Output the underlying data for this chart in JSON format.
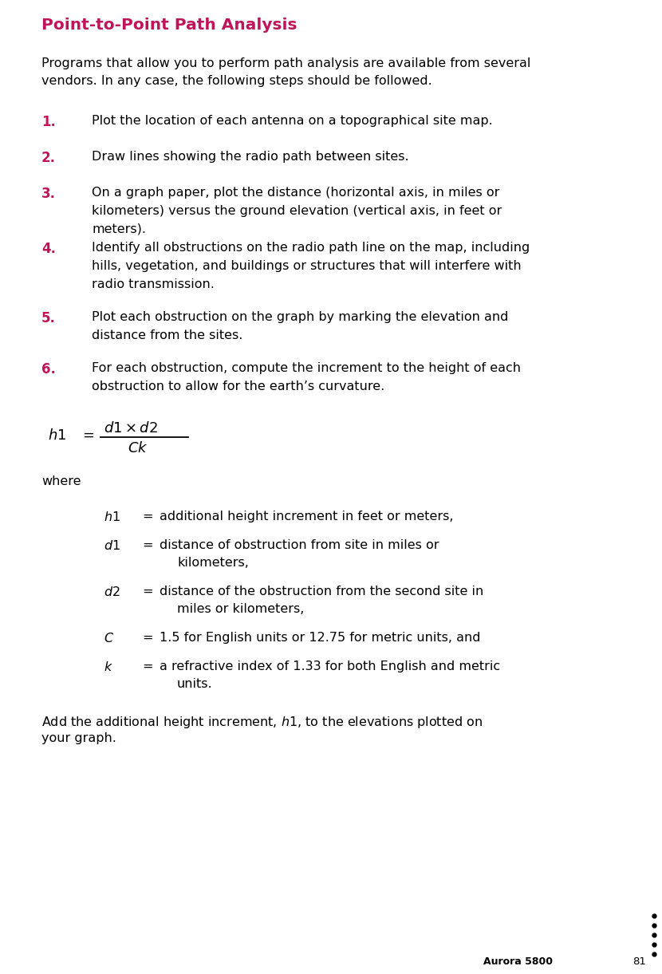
{
  "title": "Point-to-Point Path Analysis",
  "title_color": "#C0145A",
  "body_color": "#000000",
  "bg_color": "#FFFFFF",
  "number_color": "#C0145A",
  "intro_line1": "Programs that allow you to perform path analysis are available from several",
  "intro_line2": "vendors. In any case, the following steps should be followed.",
  "steps": [
    {
      "num": "1.",
      "lines": [
        "Plot the location of each antenna on a topographical site map."
      ]
    },
    {
      "num": "2.",
      "lines": [
        "Draw lines showing the radio path between sites."
      ]
    },
    {
      "num": "3.",
      "lines": [
        "On a graph paper, plot the distance (horizontal axis, in miles or",
        "kilometers) versus the ground elevation (vertical axis, in feet or",
        "meters)."
      ]
    },
    {
      "num": "4.",
      "lines": [
        "Identify all obstructions on the radio path line on the map, including",
        "hills, vegetation, and buildings or structures that will interfere with",
        "radio transmission."
      ]
    },
    {
      "num": "5.",
      "lines": [
        "Plot each obstruction on the graph by marking the elevation and",
        "distance from the sites."
      ]
    },
    {
      "num": "6.",
      "lines": [
        "For each obstruction, compute the increment to the height of each",
        "obstruction to allow for the earth’s curvature."
      ]
    }
  ],
  "where_text": "where",
  "definitions": [
    {
      "term": "h1",
      "def_parts": [
        [
          "additional height increment in feet or meters,"
        ]
      ]
    },
    {
      "term": "d1",
      "def_parts": [
        [
          "distance of obstruction from site in miles or"
        ],
        [
          "kilometers,"
        ]
      ]
    },
    {
      "term": "d2",
      "def_parts": [
        [
          "distance of the obstruction from the second site in"
        ],
        [
          "miles or kilometers,"
        ]
      ]
    },
    {
      "term": "C",
      "def_parts": [
        [
          "1.5 for English units or 12.75 for metric units, and"
        ]
      ]
    },
    {
      "term": "k",
      "def_parts": [
        [
          "a refractive index of 1.33 for both English and metric"
        ],
        [
          "units."
        ]
      ]
    }
  ],
  "closing_line1": "Add the additional height increment, h1, to the elevations plotted on",
  "closing_line2": "your graph.",
  "closing_h1_italic": true,
  "footer_brand": "Aurora 5800",
  "footer_page": "81",
  "dot_color": "#000000"
}
